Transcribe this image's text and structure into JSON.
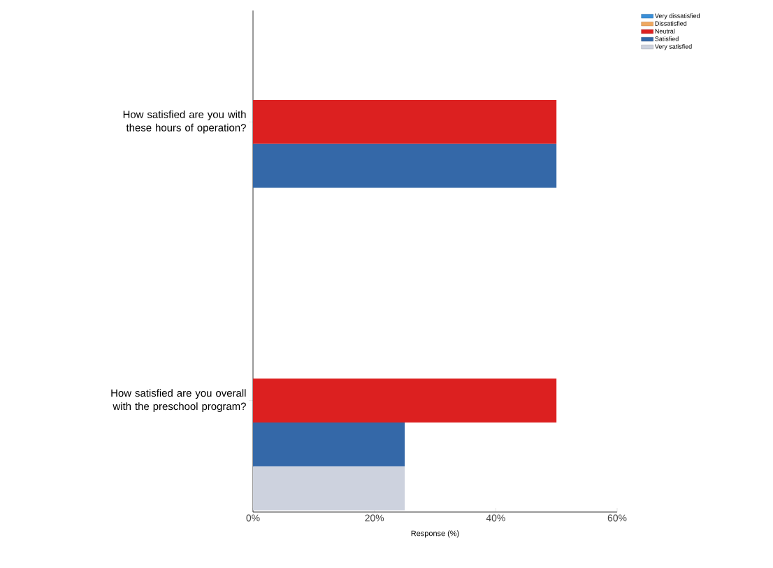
{
  "chart_data": {
    "type": "bar",
    "orientation": "horizontal",
    "xlabel": "Response (%)",
    "categories": [
      "How satisfied are you with these hours of operation?",
      "How satisfied are you overall with the preschool program?"
    ],
    "series": [
      {
        "name": "Very dissatisfied",
        "color": "#3a8fd8",
        "values": [
          0,
          0
        ]
      },
      {
        "name": "Dissatisfied",
        "color": "#f0a860",
        "values": [
          0,
          0
        ]
      },
      {
        "name": "Neutral",
        "color": "#dc2020",
        "values": [
          50,
          50
        ]
      },
      {
        "name": "Satisfied",
        "color": "#3468a8",
        "values": [
          50,
          25
        ]
      },
      {
        "name": "Very satisfied",
        "color": "#cdd2de",
        "values": [
          0,
          25
        ]
      }
    ],
    "xlim": [
      0,
      60
    ],
    "xticks": [
      {
        "value": 0,
        "label": "0%"
      },
      {
        "value": 20,
        "label": "20%"
      },
      {
        "value": 40,
        "label": "40%"
      },
      {
        "value": 60,
        "label": "60%"
      }
    ],
    "legend": "top right",
    "grid": false
  }
}
